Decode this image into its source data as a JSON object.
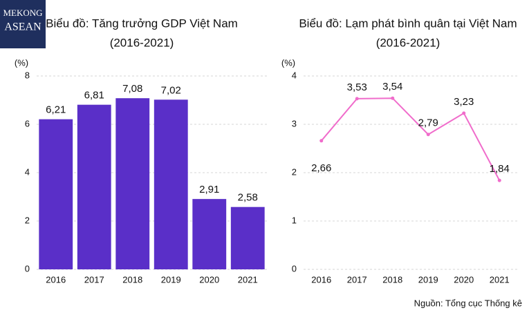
{
  "logo": {
    "line1": "MEKONG",
    "line2": "ASEAN"
  },
  "source": "Nguồn: Tổng cục Thống kê",
  "chart_data": [
    {
      "type": "bar",
      "title": "Biểu đồ: Tăng trưởng GDP Việt Nam",
      "subtitle": "(2016-2021)",
      "y_label": "(%)",
      "categories": [
        "2016",
        "2017",
        "2018",
        "2019",
        "2020",
        "2021"
      ],
      "values": [
        6.21,
        6.81,
        7.08,
        7.02,
        2.91,
        2.58
      ],
      "value_labels": [
        "6,21",
        "6,81",
        "7,08",
        "7,02",
        "2,91",
        "2,58"
      ],
      "color": "#5a2fc8",
      "ylim": [
        0,
        8
      ],
      "yticks": [
        0,
        2,
        4,
        6,
        8
      ],
      "grid": true
    },
    {
      "type": "line",
      "title": "Biểu đồ: Lạm phát bình quân tại Việt Nam",
      "subtitle": "(2016-2021)",
      "y_label": "(%)",
      "categories": [
        "2016",
        "2017",
        "2018",
        "2019",
        "2020",
        "2021"
      ],
      "values": [
        2.66,
        3.53,
        3.54,
        2.79,
        3.23,
        1.84
      ],
      "value_labels": [
        "2,66",
        "3,53",
        "3,54",
        "2,79",
        "3,23",
        "1,84"
      ],
      "color": "#f06ccb",
      "ylim": [
        0,
        4
      ],
      "yticks": [
        0,
        1,
        2,
        3,
        4
      ],
      "grid": true
    }
  ]
}
